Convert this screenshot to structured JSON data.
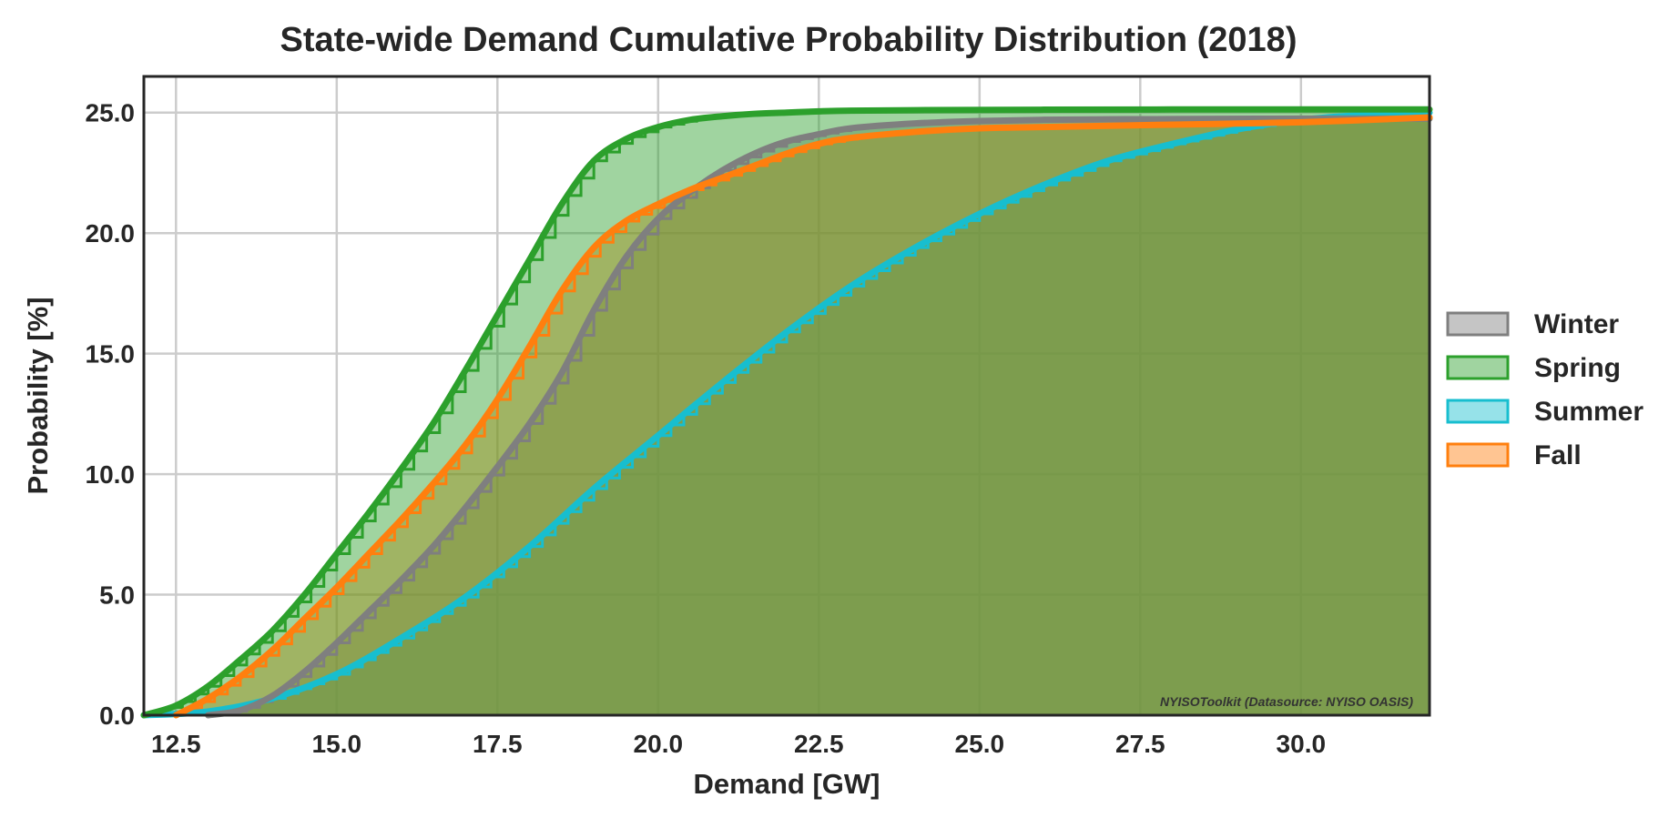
{
  "chart_data": {
    "type": "area",
    "title": "State-wide Demand Cumulative Probability Distribution (2018)",
    "xlabel": "Demand [GW]",
    "ylabel": "Probability [%]",
    "xlim": [
      12.0,
      32.0
    ],
    "ylim": [
      0.0,
      26.5
    ],
    "xticks": [
      12.5,
      15.0,
      17.5,
      20.0,
      22.5,
      25.0,
      27.5,
      30.0
    ],
    "xtick_labels": [
      "12.5",
      "15.0",
      "17.5",
      "20.0",
      "22.5",
      "25.0",
      "27.5",
      "30.0"
    ],
    "yticks": [
      0.0,
      5.0,
      10.0,
      15.0,
      20.0,
      25.0
    ],
    "ytick_labels": [
      "0.0",
      "5.0",
      "10.0",
      "15.0",
      "20.0",
      "25.0"
    ],
    "grid": true,
    "legend_position": "right",
    "watermark": "NYISOToolkit (Datasource: NYISO OASIS)",
    "series": [
      {
        "name": "Winter",
        "color": "#7f7f7f",
        "x": [
          13.0,
          13.5,
          14.0,
          14.5,
          15.0,
          15.5,
          16.0,
          16.5,
          17.0,
          17.5,
          18.0,
          18.5,
          19.0,
          19.5,
          20.0,
          20.5,
          21.0,
          21.5,
          22.0,
          22.5,
          23.0,
          24.0,
          25.0,
          26.0,
          27.0,
          28.0,
          30.0,
          32.0
        ],
        "values": [
          0.0,
          0.2,
          0.8,
          1.8,
          3.0,
          4.3,
          5.6,
          7.0,
          8.6,
          10.3,
          12.1,
          14.2,
          16.8,
          19.0,
          20.6,
          21.7,
          22.6,
          23.3,
          23.8,
          24.1,
          24.35,
          24.55,
          24.65,
          24.7,
          24.72,
          24.73,
          24.75,
          24.75
        ]
      },
      {
        "name": "Spring",
        "color": "#2ca02c",
        "x": [
          12.0,
          12.5,
          13.0,
          13.5,
          14.0,
          14.5,
          15.0,
          15.5,
          16.0,
          16.5,
          17.0,
          17.5,
          18.0,
          18.5,
          19.0,
          19.5,
          20.0,
          20.5,
          21.0,
          21.5,
          22.0,
          22.5,
          23.0,
          24.0,
          26.0,
          28.0,
          30.0,
          32.0
        ],
        "values": [
          0.0,
          0.4,
          1.2,
          2.3,
          3.5,
          5.0,
          6.7,
          8.4,
          10.2,
          12.1,
          14.3,
          16.6,
          18.9,
          21.2,
          23.0,
          23.9,
          24.4,
          24.7,
          24.85,
          24.95,
          25.0,
          25.05,
          25.08,
          25.1,
          25.12,
          25.13,
          25.13,
          25.13
        ]
      },
      {
        "name": "Summer",
        "color": "#17becf",
        "x": [
          12.0,
          13.0,
          14.0,
          15.0,
          16.0,
          17.0,
          18.0,
          19.0,
          20.0,
          21.0,
          22.0,
          23.0,
          24.0,
          25.0,
          26.0,
          27.0,
          28.0,
          29.0,
          30.0,
          31.0,
          32.0
        ],
        "values": [
          0.0,
          0.15,
          0.7,
          1.7,
          3.2,
          4.9,
          7.0,
          9.4,
          11.6,
          13.8,
          15.9,
          17.8,
          19.4,
          20.8,
          22.0,
          23.0,
          23.7,
          24.3,
          24.7,
          24.9,
          25.0
        ]
      },
      {
        "name": "Fall",
        "color": "#ff7f0e",
        "x": [
          12.5,
          13.0,
          13.5,
          14.0,
          14.5,
          15.0,
          15.5,
          16.0,
          16.5,
          17.0,
          17.5,
          18.0,
          18.5,
          19.0,
          19.5,
          20.0,
          20.5,
          21.0,
          21.5,
          22.0,
          22.5,
          23.0,
          24.0,
          25.0,
          26.0,
          28.0,
          30.0,
          32.0
        ],
        "values": [
          0.0,
          0.7,
          1.6,
          2.7,
          4.0,
          5.3,
          6.7,
          8.1,
          9.6,
          11.2,
          13.1,
          15.3,
          17.6,
          19.4,
          20.5,
          21.2,
          21.8,
          22.3,
          22.8,
          23.3,
          23.7,
          23.95,
          24.2,
          24.35,
          24.4,
          24.5,
          24.6,
          24.8
        ]
      }
    ]
  }
}
